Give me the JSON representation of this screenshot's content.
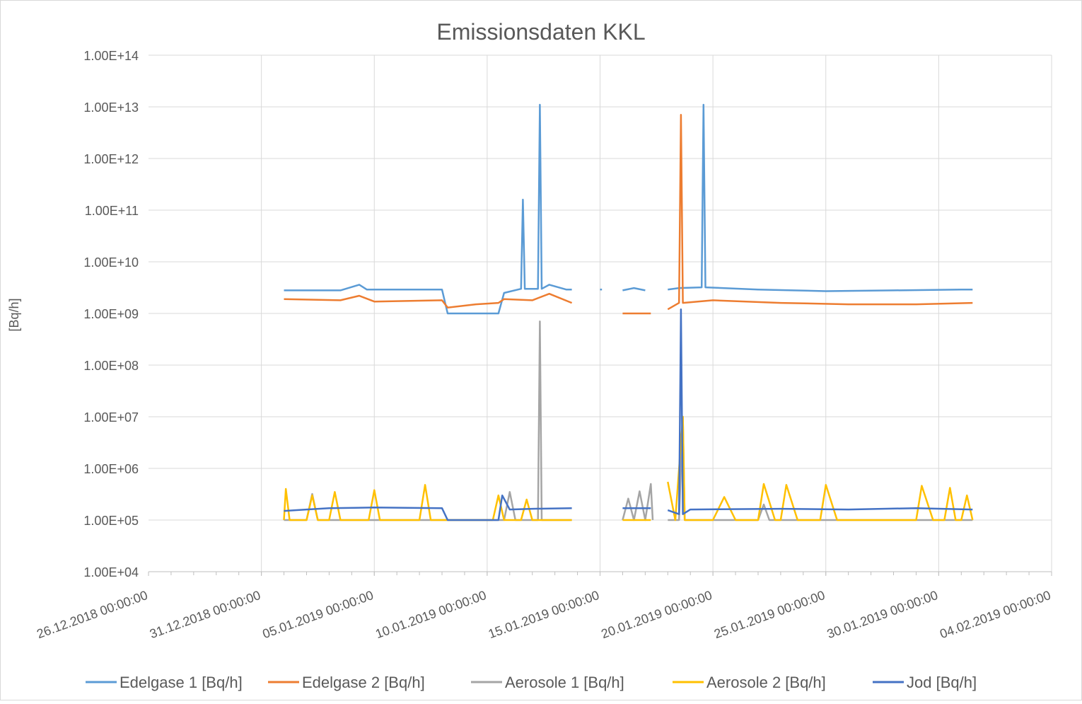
{
  "chart_data": {
    "type": "line",
    "title": "Emissionsdaten KKL",
    "ylabel": "[Bq/h]",
    "xlabel": "",
    "y_scale": "log",
    "ylim": [
      10000,
      100000000000000
    ],
    "y_tick_values": [
      10000,
      100000,
      1000000,
      10000000,
      100000000,
      1000000000,
      10000000000,
      100000000000,
      1000000000000,
      10000000000000,
      100000000000000
    ],
    "y_tick_labels": [
      "1.00E+04",
      "1.00E+05",
      "1.00E+06",
      "1.00E+07",
      "1.00E+08",
      "1.00E+09",
      "1.00E+10",
      "1.00E+11",
      "1.00E+12",
      "1.00E+13",
      "1.00E+14"
    ],
    "xlim": [
      "26.12.2018 00:00:00",
      "04.02.2019 00:00:00"
    ],
    "x_tick_labels": [
      "26.12.2018 00:00:00",
      "31.12.2018 00:00:00",
      "05.01.2019 00:00:00",
      "10.01.2019 00:00:00",
      "15.01.2019 00:00:00",
      "20.01.2019 00:00:00",
      "25.01.2019 00:00:00",
      "30.01.2019 00:00:00",
      "04.02.2019 00:00:00"
    ],
    "grid": true,
    "legend_position": "bottom",
    "series": [
      {
        "name": "Edelgase 1 [Bq/h]",
        "color": "#5b9bd5",
        "points": [
          [
            "01.01.2019 00:00",
            2800000000.0
          ],
          [
            "03.01.2019 12:00",
            2800000000.0
          ],
          [
            "04.01.2019 08:00",
            3600000000.0
          ],
          [
            "04.01.2019 16:00",
            2900000000.0
          ],
          [
            "08.01.2019 00:00",
            2900000000.0
          ],
          [
            "08.01.2019 06:00",
            1000000000.0
          ],
          [
            "09.01.2019 00:00",
            1000000000.0
          ],
          [
            "10.01.2019 00:00",
            1000000000.0
          ],
          [
            "10.01.2019 12:00",
            1000000000.0
          ],
          [
            "10.01.2019 18:00",
            2500000000.0
          ],
          [
            "11.01.2019 12:00",
            3000000000.0
          ],
          [
            "11.01.2019 14:00",
            160000000000.0
          ],
          [
            "11.01.2019 16:00",
            3000000000.0
          ],
          [
            "12.01.2019 06:00",
            3000000000.0
          ],
          [
            "12.01.2019 08:00",
            11000000000000.0
          ],
          [
            "12.01.2019 10:00",
            3000000000.0
          ],
          [
            "12.01.2019 18:00",
            3600000000.0
          ],
          [
            "13.01.2019 12:00",
            2900000000.0
          ],
          [
            "13.01.2019 18:00",
            2900000000.0
          ],
          null,
          [
            "15.01.2019 00:00",
            2900000000.0
          ],
          [
            "15.01.2019 02:00",
            2900000000.0
          ],
          null,
          [
            "16.01.2019 00:00",
            2800000000.0
          ],
          [
            "16.01.2019 12:00",
            3100000000.0
          ],
          [
            "17.01.2019 00:00",
            2800000000.0
          ],
          null,
          [
            "18.01.2019 00:00",
            2900000000.0
          ],
          [
            "18.01.2019 12:00",
            3100000000.0
          ],
          [
            "19.01.2019 12:00",
            3200000000.0
          ],
          [
            "19.01.2019 14:00",
            11000000000000.0
          ],
          [
            "19.01.2019 16:00",
            3200000000.0
          ],
          [
            "22.01.2019 00:00",
            2900000000.0
          ],
          [
            "25.01.2019 00:00",
            2700000000.0
          ],
          [
            "28.01.2019 00:00",
            2800000000.0
          ],
          [
            "31.01.2019 00:00",
            2900000000.0
          ],
          [
            "31.01.2019 12:00",
            2900000000.0
          ]
        ]
      },
      {
        "name": "Edelgase 2 [Bq/h]",
        "color": "#ed7d31",
        "points": [
          [
            "01.01.2019 00:00",
            1900000000.0
          ],
          [
            "03.01.2019 12:00",
            1800000000.0
          ],
          [
            "04.01.2019 08:00",
            2200000000.0
          ],
          [
            "05.01.2019 00:00",
            1700000000.0
          ],
          [
            "08.01.2019 00:00",
            1800000000.0
          ],
          [
            "08.01.2019 06:00",
            1300000000.0
          ],
          [
            "09.01.2019 12:00",
            1500000000.0
          ],
          [
            "10.01.2019 12:00",
            1600000000.0
          ],
          [
            "10.01.2019 18:00",
            1900000000.0
          ],
          [
            "12.01.2019 00:00",
            1800000000.0
          ],
          [
            "12.01.2019 18:00",
            2400000000.0
          ],
          [
            "13.01.2019 18:00",
            1600000000.0
          ],
          null,
          [
            "16.01.2019 00:00",
            1000000000.0
          ],
          [
            "17.01.2019 06:00",
            1000000000.0
          ],
          null,
          [
            "18.01.2019 00:00",
            1200000000.0
          ],
          [
            "18.01.2019 12:00",
            1600000000.0
          ],
          [
            "18.01.2019 14:00",
            7000000000000.0
          ],
          [
            "18.01.2019 16:00",
            1600000000.0
          ],
          [
            "20.01.2019 00:00",
            1800000000.0
          ],
          [
            "23.01.2019 00:00",
            1600000000.0
          ],
          [
            "26.01.2019 00:00",
            1500000000.0
          ],
          [
            "29.01.2019 00:00",
            1500000000.0
          ],
          [
            "31.01.2019 12:00",
            1600000000.0
          ]
        ]
      },
      {
        "name": "Aerosole 1 [Bq/h]",
        "color": "#a5a5a5",
        "points": [
          [
            "01.01.2019 00:00",
            100000.0
          ],
          [
            "02.01.2019 00:00",
            100000.0
          ],
          [
            "02.01.2019 06:00",
            320000.0
          ],
          [
            "02.01.2019 12:00",
            100000.0
          ],
          [
            "08.01.2019 00:00",
            100000.0
          ],
          [
            "10.01.2019 18:00",
            100000.0
          ],
          [
            "11.01.2019 00:00",
            350000.0
          ],
          [
            "11.01.2019 06:00",
            100000.0
          ],
          [
            "12.01.2019 06:00",
            100000.0
          ],
          [
            "12.01.2019 08:00",
            700000000.0
          ],
          [
            "12.01.2019 10:00",
            100000.0
          ],
          [
            "13.01.2019 18:00",
            100000.0
          ],
          null,
          [
            "16.01.2019 00:00",
            100000.0
          ],
          [
            "16.01.2019 06:00",
            260000.0
          ],
          [
            "16.01.2019 12:00",
            100000.0
          ],
          [
            "16.01.2019 18:00",
            360000.0
          ],
          [
            "17.01.2019 00:00",
            100000.0
          ],
          [
            "17.01.2019 06:00",
            500000.0
          ],
          [
            "17.01.2019 08:00",
            100000.0
          ],
          null,
          [
            "18.01.2019 00:00",
            100000.0
          ],
          [
            "18.01.2019 12:00",
            100000.0
          ],
          [
            "18.01.2019 16:00",
            10000000.0
          ],
          [
            "18.01.2019 18:00",
            100000.0
          ],
          [
            "22.01.2019 00:00",
            100000.0
          ],
          [
            "22.01.2019 06:00",
            200000.0
          ],
          [
            "22.01.2019 12:00",
            100000.0
          ],
          [
            "31.01.2019 12:00",
            100000.0
          ]
        ]
      },
      {
        "name": "Aerosole 2 [Bq/h]",
        "color": "#ffc000",
        "points": [
          [
            "01.01.2019 00:00",
            100000.0
          ],
          [
            "01.01.2019 02:00",
            400000.0
          ],
          [
            "01.01.2019 06:00",
            100000.0
          ],
          [
            "02.01.2019 00:00",
            100000.0
          ],
          [
            "02.01.2019 06:00",
            300000.0
          ],
          [
            "02.01.2019 12:00",
            100000.0
          ],
          [
            "03.01.2019 00:00",
            100000.0
          ],
          [
            "03.01.2019 06:00",
            350000.0
          ],
          [
            "03.01.2019 12:00",
            100000.0
          ],
          [
            "04.01.2019 18:00",
            100000.0
          ],
          [
            "05.01.2019 00:00",
            380000.0
          ],
          [
            "05.01.2019 06:00",
            100000.0
          ],
          [
            "07.01.2019 00:00",
            100000.0
          ],
          [
            "07.01.2019 06:00",
            480000.0
          ],
          [
            "07.01.2019 12:00",
            100000.0
          ],
          [
            "10.01.2019 06:00",
            100000.0
          ],
          [
            "10.01.2019 12:00",
            300000.0
          ],
          [
            "10.01.2019 18:00",
            100000.0
          ],
          [
            "11.01.2019 12:00",
            100000.0
          ],
          [
            "11.01.2019 18:00",
            250000.0
          ],
          [
            "12.01.2019 00:00",
            100000.0
          ],
          [
            "13.01.2019 18:00",
            100000.0
          ],
          null,
          [
            "16.01.2019 00:00",
            100000.0
          ],
          [
            "17.01.2019 06:00",
            100000.0
          ],
          null,
          [
            "18.01.2019 00:00",
            550000.0
          ],
          [
            "18.01.2019 08:00",
            100000.0
          ],
          [
            "18.01.2019 16:00",
            10000000.0
          ],
          [
            "18.01.2019 18:00",
            100000.0
          ],
          [
            "20.01.2019 00:00",
            100000.0
          ],
          [
            "20.01.2019 12:00",
            280000.0
          ],
          [
            "21.01.2019 00:00",
            100000.0
          ],
          [
            "22.01.2019 00:00",
            100000.0
          ],
          [
            "22.01.2019 06:00",
            500000.0
          ],
          [
            "22.01.2019 18:00",
            100000.0
          ],
          [
            "23.01.2019 00:00",
            100000.0
          ],
          [
            "23.01.2019 06:00",
            480000.0
          ],
          [
            "23.01.2019 18:00",
            100000.0
          ],
          [
            "24.01.2019 18:00",
            100000.0
          ],
          [
            "25.01.2019 00:00",
            480000.0
          ],
          [
            "25.01.2019 12:00",
            100000.0
          ],
          [
            "29.01.2019 00:00",
            100000.0
          ],
          [
            "29.01.2019 06:00",
            460000.0
          ],
          [
            "29.01.2019 18:00",
            100000.0
          ],
          [
            "30.01.2019 06:00",
            100000.0
          ],
          [
            "30.01.2019 12:00",
            420000.0
          ],
          [
            "30.01.2019 18:00",
            100000.0
          ],
          [
            "31.01.2019 00:00",
            100000.0
          ],
          [
            "31.01.2019 06:00",
            300000.0
          ],
          [
            "31.01.2019 12:00",
            100000.0
          ]
        ]
      },
      {
        "name": "Jod [Bq/h]",
        "color": "#4472c4",
        "points": [
          [
            "01.01.2019 00:00",
            150000.0
          ],
          [
            "02.01.2019 00:00",
            160000.0
          ],
          [
            "03.01.2019 00:00",
            170000.0
          ],
          [
            "05.01.2019 00:00",
            175000.0
          ],
          [
            "08.01.2019 00:00",
            170000.0
          ],
          [
            "08.01.2019 06:00",
            100000.0
          ],
          [
            "10.01.2019 12:00",
            100000.0
          ],
          [
            "10.01.2019 16:00",
            300000.0
          ],
          [
            "11.01.2019 00:00",
            160000.0
          ],
          [
            "12.01.2019 00:00",
            165000.0
          ],
          [
            "13.01.2019 18:00",
            170000.0
          ],
          null,
          [
            "16.01.2019 00:00",
            170000.0
          ],
          [
            "17.01.2019 06:00",
            170000.0
          ],
          null,
          [
            "18.01.2019 00:00",
            155000.0
          ],
          [
            "18.01.2019 12:00",
            130000.0
          ],
          [
            "18.01.2019 14:00",
            1200000000.0
          ],
          [
            "18.01.2019 16:00",
            130000.0
          ],
          [
            "19.01.2019 00:00",
            160000.0
          ],
          [
            "23.01.2019 00:00",
            165000.0
          ],
          [
            "26.01.2019 00:00",
            160000.0
          ],
          [
            "29.01.2019 00:00",
            170000.0
          ],
          [
            "31.01.2019 12:00",
            160000.0
          ]
        ]
      }
    ]
  }
}
